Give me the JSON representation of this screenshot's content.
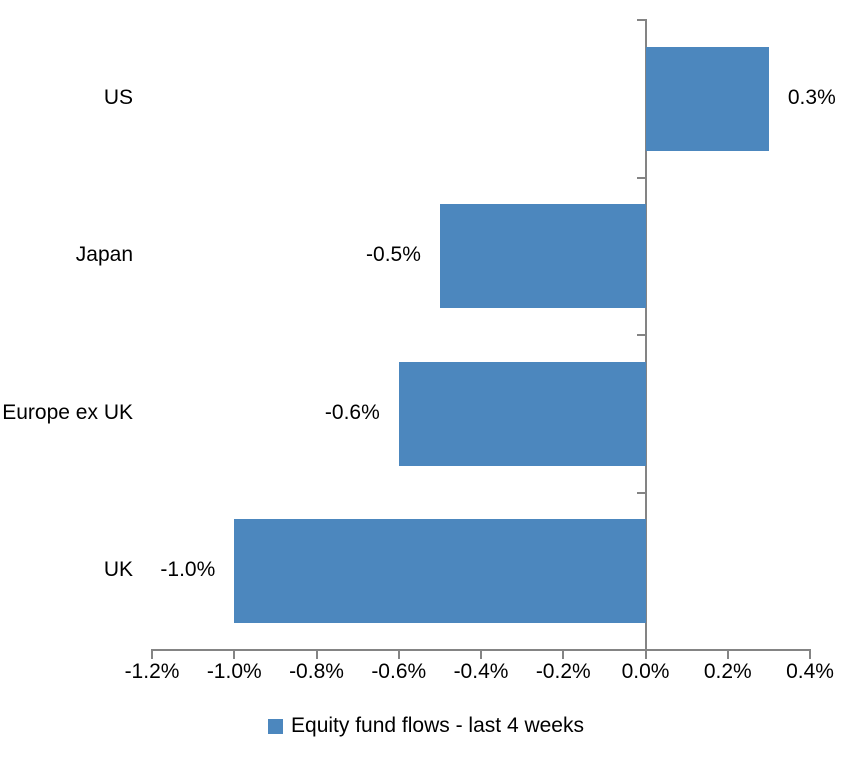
{
  "chart_data": {
    "type": "bar",
    "orientation": "horizontal",
    "title": "",
    "xlabel": "",
    "ylabel": "",
    "categories": [
      "US",
      "Japan",
      "Europe ex UK",
      "UK"
    ],
    "series": [
      {
        "name": "Equity fund flows - last 4 weeks",
        "values": [
          0.3,
          -0.5,
          -0.6,
          -1.0
        ],
        "value_labels": [
          "0.3%",
          "-0.5%",
          "-0.6%",
          "-1.0%"
        ]
      }
    ],
    "xlim": [
      -1.2,
      0.4
    ],
    "x_ticks": [
      -1.2,
      -1.0,
      -0.8,
      -0.6,
      -0.4,
      -0.2,
      0.0,
      0.2,
      0.4
    ],
    "x_tick_labels": [
      "-1.2%",
      "-1.0%",
      "-0.8%",
      "-0.6%",
      "-0.4%",
      "-0.2%",
      "0.0%",
      "0.2%",
      "0.4%"
    ],
    "grid": false,
    "legend_position": "bottom",
    "colors": {
      "bar": "#4C87BE",
      "axis": "#848484",
      "text": "#000000",
      "background": "#FFFFFF"
    }
  }
}
